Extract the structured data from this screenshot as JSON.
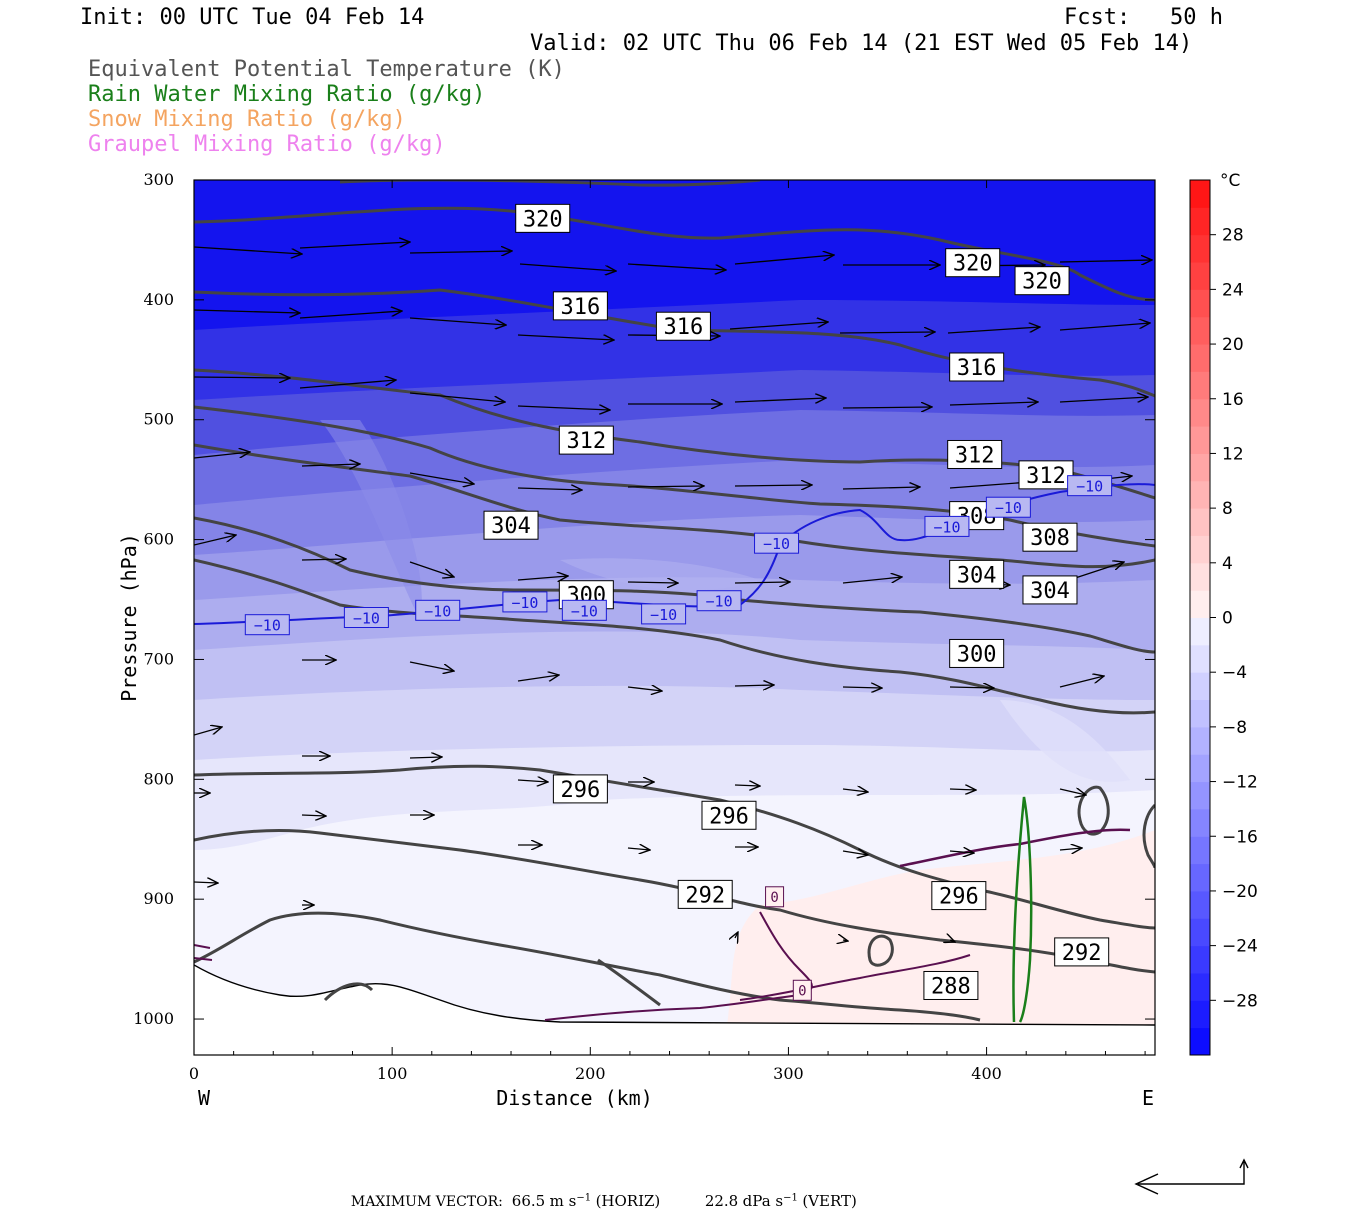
{
  "header": {
    "init": "Init: 00 UTC Tue 04 Feb 14",
    "fcst": "Fcst:   50 h",
    "valid": "Valid: 02 UTC Thu 06 Feb 14 (21 EST Wed 05 Feb 14)"
  },
  "legend": [
    {
      "label": "Equivalent Potential Temperature (K)",
      "color": "#555555"
    },
    {
      "label": "Rain Water Mixing Ratio (g/kg)",
      "color": "#1a7f1a"
    },
    {
      "label": "Snow Mixing Ratio (g/kg)",
      "color": "#f4a460"
    },
    {
      "label": "Graupel Mixing Ratio (g/kg)",
      "color": "#ee82ee"
    }
  ],
  "chart_data": {
    "type": "contour",
    "xlabel": "Distance (km)",
    "ylabel": "Pressure (hPa)",
    "xlim": [
      0,
      485
    ],
    "ylim": [
      1030,
      300
    ],
    "x_ticks": [
      0,
      100,
      200,
      300,
      400
    ],
    "y_ticks": [
      300,
      400,
      500,
      600,
      700,
      800,
      900,
      1000
    ],
    "x_end_labels": {
      "left": "W",
      "right": "E"
    },
    "colorbar": {
      "unit": "°C",
      "tick_labels": [
        "28",
        "24",
        "20",
        "16",
        "12",
        "8",
        "4",
        "0",
        "−4",
        "−8",
        "−12",
        "−16",
        "−20",
        "−24",
        "−28"
      ],
      "tick_values": [
        28,
        24,
        20,
        16,
        12,
        8,
        4,
        0,
        -4,
        -8,
        -12,
        -16,
        -20,
        -24,
        -28
      ],
      "range": [
        -32,
        32
      ]
    },
    "theta_e_labels": [
      {
        "text": "320",
        "x": 176,
        "p": 332
      },
      {
        "text": "320",
        "x": 393,
        "p": 369
      },
      {
        "text": "320",
        "x": 428,
        "p": 384
      },
      {
        "text": "316",
        "x": 195,
        "p": 405
      },
      {
        "text": "316",
        "x": 247,
        "p": 422
      },
      {
        "text": "316",
        "x": 395,
        "p": 456
      },
      {
        "text": "312",
        "x": 198,
        "p": 517
      },
      {
        "text": "312",
        "x": 394,
        "p": 529
      },
      {
        "text": "312",
        "x": 430,
        "p": 546
      },
      {
        "text": "308",
        "x": 395,
        "p": 580
      },
      {
        "text": "308",
        "x": 432,
        "p": 598
      },
      {
        "text": "304",
        "x": 160,
        "p": 588
      },
      {
        "text": "304",
        "x": 395,
        "p": 629
      },
      {
        "text": "304",
        "x": 432,
        "p": 642
      },
      {
        "text": "300",
        "x": 198,
        "p": 646
      },
      {
        "text": "300",
        "x": 395,
        "p": 695
      },
      {
        "text": "296",
        "x": 195,
        "p": 808
      },
      {
        "text": "296",
        "x": 270,
        "p": 830
      },
      {
        "text": "296",
        "x": 386,
        "p": 897
      },
      {
        "text": "292",
        "x": 258,
        "p": 896
      },
      {
        "text": "292",
        "x": 448,
        "p": 944
      },
      {
        "text": "288",
        "x": 382,
        "p": 972
      }
    ],
    "temp_labels": [
      {
        "text": "−10",
        "x": 37,
        "p": 671
      },
      {
        "text": "−10",
        "x": 87,
        "p": 665
      },
      {
        "text": "−10",
        "x": 123,
        "p": 659
      },
      {
        "text": "−10",
        "x": 167,
        "p": 652
      },
      {
        "text": "−10",
        "x": 197,
        "p": 659
      },
      {
        "text": "−10",
        "x": 237,
        "p": 662
      },
      {
        "text": "−10",
        "x": 265,
        "p": 651
      },
      {
        "text": "−10",
        "x": 294,
        "p": 603
      },
      {
        "text": "−10",
        "x": 380,
        "p": 589
      },
      {
        "text": "−10",
        "x": 411,
        "p": 573
      },
      {
        "text": "−10",
        "x": 452,
        "p": 555
      }
    ],
    "zero_labels": [
      {
        "text": "0",
        "x": 293,
        "p": 898
      },
      {
        "text": "0",
        "x": 307,
        "p": 976
      }
    ]
  },
  "footer": {
    "max_label": "MAXIMUM VECTOR:",
    "horiz_value": "66.5",
    "horiz_unit": "m s",
    "horiz_sup": "−1",
    "horiz_tag": "(HORIZ)",
    "vert_value": "22.8",
    "vert_unit": "dPa s",
    "vert_sup": "−1",
    "vert_tag": "(VERT)"
  }
}
